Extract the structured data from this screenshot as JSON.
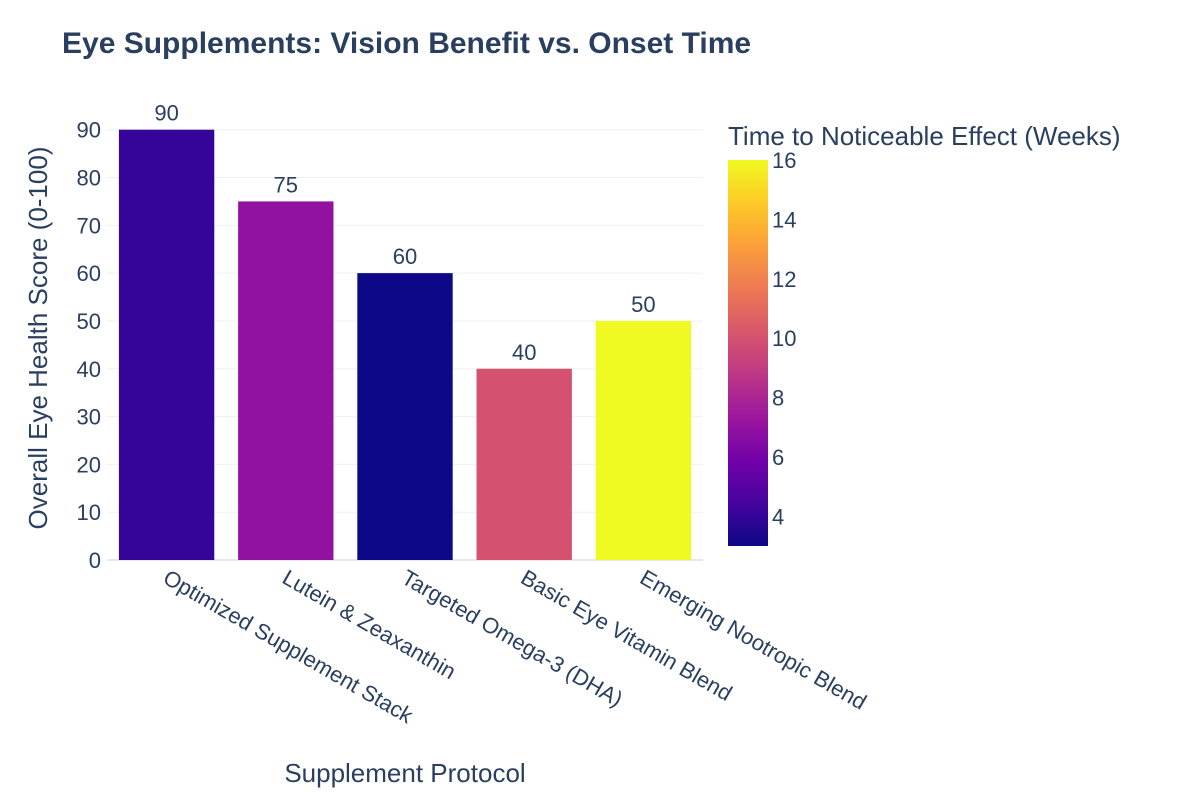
{
  "chart_data": {
    "type": "bar",
    "title": "Eye Supplements: Vision Benefit vs. Onset Time",
    "xlabel": "Supplement Protocol",
    "ylabel": "Overall Eye Health Score (0-100)",
    "ylim": [
      0,
      90
    ],
    "yticks": [
      0,
      10,
      20,
      30,
      40,
      50,
      60,
      70,
      80,
      90
    ],
    "categories": [
      "Optimized Supplement Stack",
      "Lutein & Zeaxanthin",
      "Targeted Omega-3 (DHA)",
      "Basic Eye Vitamin Blend",
      "Emerging Nootropic Blend"
    ],
    "values": [
      90,
      75,
      60,
      40,
      50
    ],
    "labels": [
      "90",
      "75",
      "60",
      "40",
      "50"
    ],
    "color_values": [
      4,
      7,
      3,
      10,
      16
    ],
    "colorbar": {
      "title": "Time to Noticeable Effect (Weeks)",
      "range": [
        3,
        16
      ],
      "ticks": [
        4,
        6,
        8,
        10,
        12,
        14,
        16
      ],
      "tick_labels": [
        "4",
        "6",
        "8",
        "10",
        "12",
        "14",
        "16"
      ],
      "colorscale": [
        "#0d0887",
        "#46039f",
        "#7201a8",
        "#9c179e",
        "#bd3786",
        "#d8576b",
        "#ed7953",
        "#fb9f3a",
        "#fdca26",
        "#f0f921"
      ]
    },
    "grid": true
  }
}
